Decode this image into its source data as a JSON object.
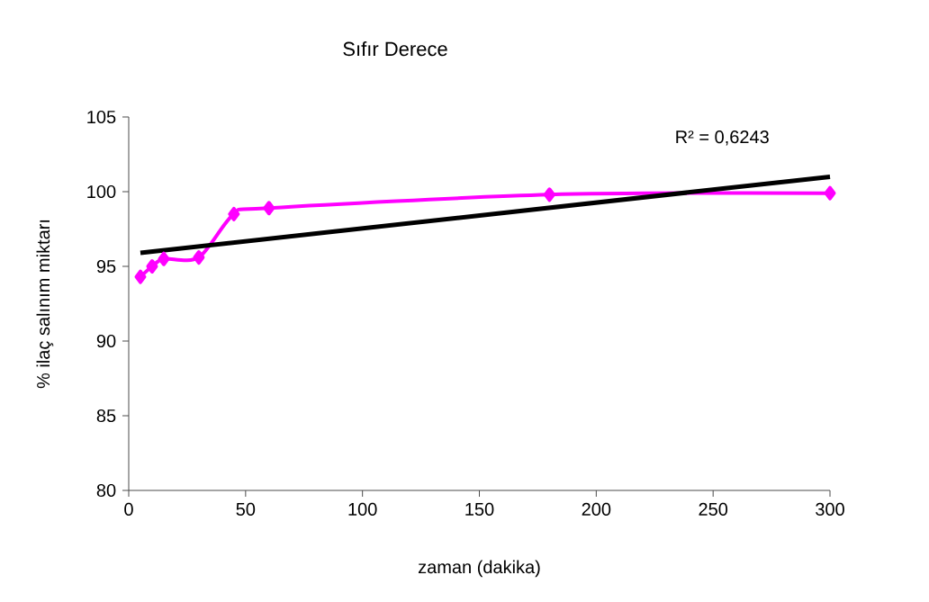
{
  "chart_data": {
    "type": "line",
    "title": "Sıfır Derece",
    "xlabel": "zaman (dakika)",
    "ylabel": "% ilaç salınım miktarı",
    "x": [
      5,
      10,
      15,
      30,
      45,
      60,
      180,
      300
    ],
    "series": [
      {
        "color": "#ff00ff",
        "marker": "diamond",
        "values": [
          94.3,
          95.0,
          95.5,
          95.6,
          98.5,
          98.9,
          99.8,
          99.9
        ]
      },
      {
        "color": "#000000",
        "marker": "none",
        "x": [
          5,
          300
        ],
        "values": [
          95.9,
          101.0
        ]
      }
    ],
    "annotations": [
      "R² = 0,6243"
    ],
    "xlim": [
      0,
      300
    ],
    "xticks": [
      0,
      50,
      100,
      150,
      200,
      250,
      300
    ],
    "ylim": [
      80,
      105
    ],
    "yticks": [
      80,
      85,
      90,
      95,
      100,
      105
    ],
    "grid": false
  }
}
